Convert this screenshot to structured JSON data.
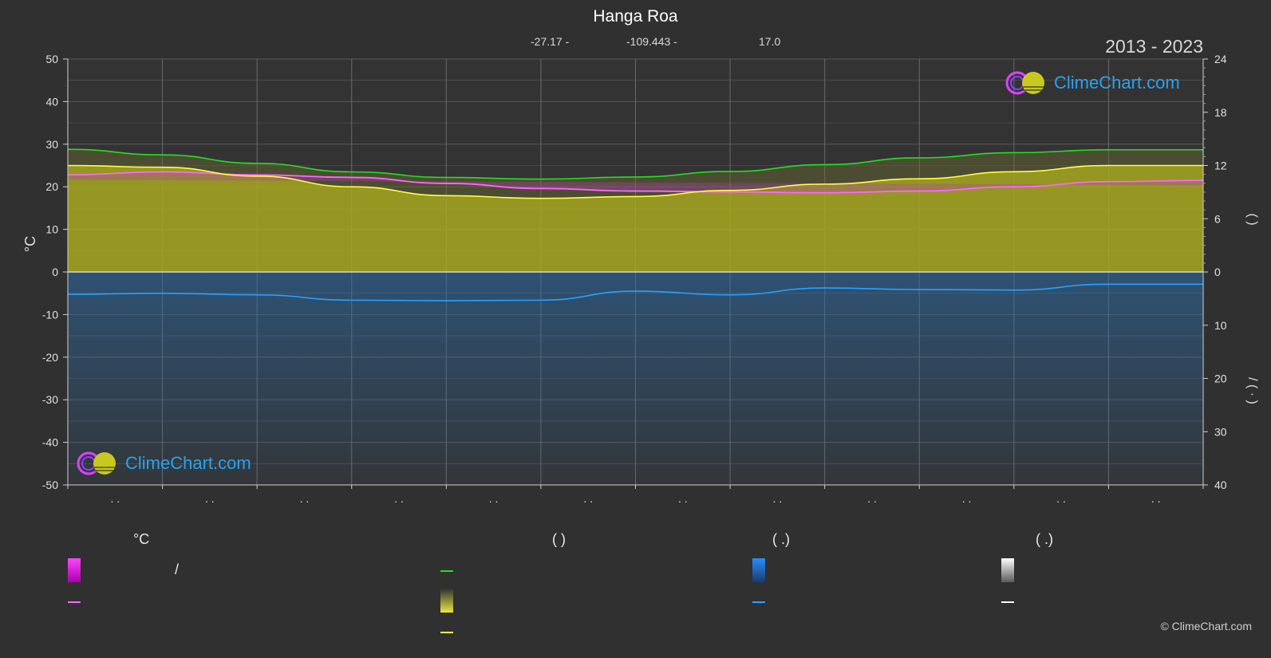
{
  "header": {
    "title": "Hanga Roa",
    "latitude": "-27.17 -",
    "longitude": "-109.443 -",
    "elevation": "17.0",
    "years": "2013 - 2023"
  },
  "logo": {
    "text": "ClimeChart.com"
  },
  "copyright": "© ClimeChart.com",
  "legend": {
    "col1_head": "°C",
    "col1_slash": "/",
    "col2_head": "(          )",
    "col3_head": "(   .)",
    "col4_head": "(   .)"
  },
  "colors": {
    "background": "#303030",
    "grid": "#5a5a5a",
    "max_temp": "#22e022",
    "temp_fill": "#a8a820",
    "sunshine": "#ffff44",
    "daytime": "#ff66ff",
    "rain": "#2aa0ff",
    "snow": "#ffffff"
  },
  "chart_data": {
    "type": "line",
    "title": "Hanga Roa",
    "ylabel": "°C",
    "ylabel_right_top": "(  )",
    "ylabel_right_bottom": "/  (  ·  )",
    "ylim": [
      -50,
      50
    ],
    "yticks": [
      50,
      40,
      30,
      20,
      10,
      0,
      -10,
      -20,
      -30,
      -40,
      -50
    ],
    "right_ticks_top": [
      24,
      18,
      12,
      6,
      0
    ],
    "right_ticks_bottom": [
      10,
      20,
      30,
      40
    ],
    "x_months": 12,
    "x_ticks": [
      ". .",
      ". .",
      ". .",
      ". .",
      ". .",
      ". .",
      ". .",
      ". .",
      ". .",
      ". .",
      ". .",
      ". ."
    ],
    "grid": true,
    "series": [
      {
        "key": "max_temp",
        "axis": "temp",
        "values": [
          28.8,
          27.5,
          25.5,
          23.5,
          22.2,
          21.8,
          22.3,
          23.6,
          25.2,
          26.8,
          28.0,
          28.7,
          28.7
        ]
      },
      {
        "key": "daytime",
        "axis": "temp",
        "values": [
          22.8,
          23.5,
          22.8,
          22.2,
          20.8,
          19.6,
          19.0,
          18.8,
          18.6,
          19.0,
          20.0,
          21.2,
          21.5
        ]
      },
      {
        "key": "sunshine",
        "axis": "hours",
        "values": [
          12.0,
          11.8,
          10.8,
          9.6,
          8.6,
          8.3,
          8.5,
          9.2,
          9.9,
          10.5,
          11.3,
          12.0,
          12.0
        ]
      },
      {
        "key": "rain",
        "axis": "mm",
        "values": [
          4.2,
          4.0,
          4.3,
          5.3,
          5.4,
          5.3,
          3.6,
          4.3,
          3.0,
          3.3,
          3.4,
          2.3,
          2.3
        ]
      }
    ]
  }
}
